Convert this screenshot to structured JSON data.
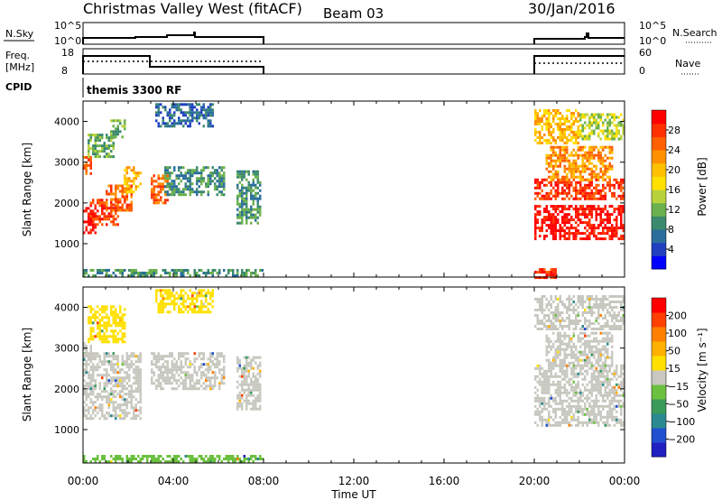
{
  "header": {
    "title": "Christmas Valley West (fitACF)",
    "beam": "Beam 03",
    "date": "30/Jan/2016"
  },
  "panels": {
    "nsky": {
      "label": "N.Sky",
      "ticks": [
        "10^5",
        "10^0"
      ],
      "right_label": "N.Search",
      "right_ticks": [
        "10^5",
        "10^0"
      ]
    },
    "freq": {
      "label_lines": [
        "Freq.",
        "[MHz]"
      ],
      "ticks": [
        "18",
        "8"
      ],
      "right_label": "Nave",
      "right_ticks": [
        "60",
        "0"
      ]
    },
    "cpid": {
      "label": "CPID",
      "text": "themis 3300 RF"
    }
  },
  "colorbars": {
    "power": {
      "label": "Power [dB]",
      "ticks": [
        "28",
        "24",
        "20",
        "16",
        "12",
        "8",
        "4"
      ],
      "colors": [
        "#0000ff",
        "#2040c0",
        "#2a6e9c",
        "#3c8a6e",
        "#6ab04c",
        "#b8d23c",
        "#ffe000",
        "#ffc000",
        "#ff9000",
        "#ff6000",
        "#ff3000",
        "#ff0000"
      ]
    },
    "velocity": {
      "label": "Velocity [m s⁻¹]",
      "ticks": [
        "200",
        "100",
        "50",
        "15",
        "−15",
        "−50",
        "−100",
        "−200"
      ],
      "colors": [
        "#2020c0",
        "#2050d0",
        "#2a8a90",
        "#3a9a5a",
        "#6cc040",
        "#c8c8c0",
        "#ffe000",
        "#ffb000",
        "#ff8000",
        "#ff4000",
        "#ff0000"
      ]
    }
  },
  "chart_data": [
    {
      "type": "heatmap",
      "name": "power",
      "ylabel": "Slant Range [km]",
      "yticks": [
        "4000",
        "3000",
        "2000",
        "1000"
      ],
      "ylim": [
        180,
        4500
      ],
      "xlim": [
        0,
        24
      ],
      "blobs": [
        {
          "t0": 0.0,
          "t1": 0.6,
          "r0": 1250,
          "r1": 1900,
          "level": 11
        },
        {
          "t0": 0.3,
          "t1": 1.6,
          "r0": 1450,
          "r1": 2100,
          "level": 10
        },
        {
          "t0": 1.0,
          "t1": 2.2,
          "r0": 1800,
          "r1": 2450,
          "level": 9
        },
        {
          "t0": 1.8,
          "t1": 2.6,
          "r0": 2300,
          "r1": 2900,
          "level": 7
        },
        {
          "t0": 0.0,
          "t1": 0.4,
          "r0": 2750,
          "r1": 3150,
          "level": 9
        },
        {
          "t0": 0.2,
          "t1": 1.4,
          "r0": 3150,
          "r1": 3700,
          "level": 4
        },
        {
          "t0": 1.2,
          "t1": 1.9,
          "r0": 3600,
          "r1": 4050,
          "level": 4
        },
        {
          "t0": 3.0,
          "t1": 3.8,
          "r0": 2000,
          "r1": 2700,
          "level": 9
        },
        {
          "t0": 3.6,
          "t1": 6.2,
          "r0": 2200,
          "r1": 2900,
          "level": 3
        },
        {
          "t0": 3.2,
          "t1": 5.8,
          "r0": 3900,
          "r1": 4450,
          "level": 2
        },
        {
          "t0": 6.8,
          "t1": 7.9,
          "r0": 1500,
          "r1": 2800,
          "level": 3
        },
        {
          "t0": 0.0,
          "t1": 8.0,
          "r0": 190,
          "r1": 380,
          "level": 3
        },
        {
          "t0": 20.0,
          "t1": 24.0,
          "r0": 1100,
          "r1": 1950,
          "level": 11
        },
        {
          "t0": 20.0,
          "t1": 24.0,
          "r0": 2100,
          "r1": 2600,
          "level": 10
        },
        {
          "t0": 20.5,
          "t1": 23.5,
          "r0": 2600,
          "r1": 3400,
          "level": 8
        },
        {
          "t0": 20.0,
          "t1": 22.0,
          "r0": 3500,
          "r1": 4300,
          "level": 7
        },
        {
          "t0": 22.0,
          "t1": 24.0,
          "r0": 3600,
          "r1": 4200,
          "level": 5
        },
        {
          "t0": 20.0,
          "t1": 21.0,
          "r0": 200,
          "r1": 400,
          "level": 10
        }
      ]
    },
    {
      "type": "heatmap",
      "name": "velocity",
      "ylabel": "Slant Range [km]",
      "yticks": [
        "4000",
        "3000",
        "2000",
        "1000"
      ],
      "ylim": [
        180,
        4500
      ],
      "xlim": [
        0,
        24
      ],
      "blobs": [
        {
          "t0": 0.0,
          "t1": 2.6,
          "r0": 1250,
          "r1": 2900,
          "level": 5
        },
        {
          "t0": 0.0,
          "t1": 0.4,
          "r0": 2750,
          "r1": 3150,
          "level": 5
        },
        {
          "t0": 0.2,
          "t1": 1.9,
          "r0": 3150,
          "r1": 4050,
          "level": 6
        },
        {
          "t0": 3.0,
          "t1": 6.2,
          "r0": 2000,
          "r1": 2900,
          "level": 5
        },
        {
          "t0": 3.2,
          "t1": 5.8,
          "r0": 3900,
          "r1": 4450,
          "level": 6
        },
        {
          "t0": 6.8,
          "t1": 7.9,
          "r0": 1500,
          "r1": 2800,
          "level": 5
        },
        {
          "t0": 0.0,
          "t1": 8.0,
          "r0": 190,
          "r1": 380,
          "level": 4
        },
        {
          "t0": 20.0,
          "t1": 24.0,
          "r0": 1100,
          "r1": 2600,
          "level": 5
        },
        {
          "t0": 20.5,
          "t1": 23.5,
          "r0": 2600,
          "r1": 3400,
          "level": 5
        },
        {
          "t0": 20.0,
          "t1": 24.0,
          "r0": 3500,
          "r1": 4300,
          "level": 5
        }
      ]
    }
  ],
  "xaxis": {
    "label": "Time UT",
    "ticks": [
      "00:00",
      "04:00",
      "08:00",
      "12:00",
      "16:00",
      "20:00",
      "00:00"
    ],
    "tick_hours": [
      0,
      4,
      8,
      12,
      16,
      20,
      24
    ]
  }
}
